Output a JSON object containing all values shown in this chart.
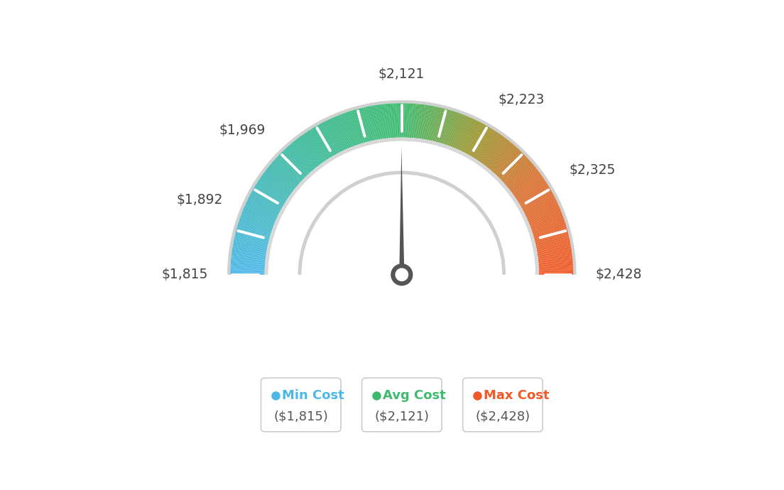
{
  "min_val": 1815,
  "avg_val": 2121,
  "max_val": 2428,
  "legend_items": [
    {
      "label": "Min Cost",
      "value": "($1,815)",
      "color": "#4db8e8"
    },
    {
      "label": "Avg Cost",
      "value": "($2,121)",
      "color": "#3dba6e"
    },
    {
      "label": "Max Cost",
      "value": "($2,428)",
      "color": "#f05a28"
    }
  ],
  "bg_color": "#ffffff",
  "outer_r": 0.85,
  "inner_r": 0.68,
  "arc_r": 0.5,
  "needle_color": "#555555",
  "label_offsets": {
    "1815": [
      0.0,
      0.0
    ],
    "2428": [
      0.0,
      0.0
    ]
  }
}
